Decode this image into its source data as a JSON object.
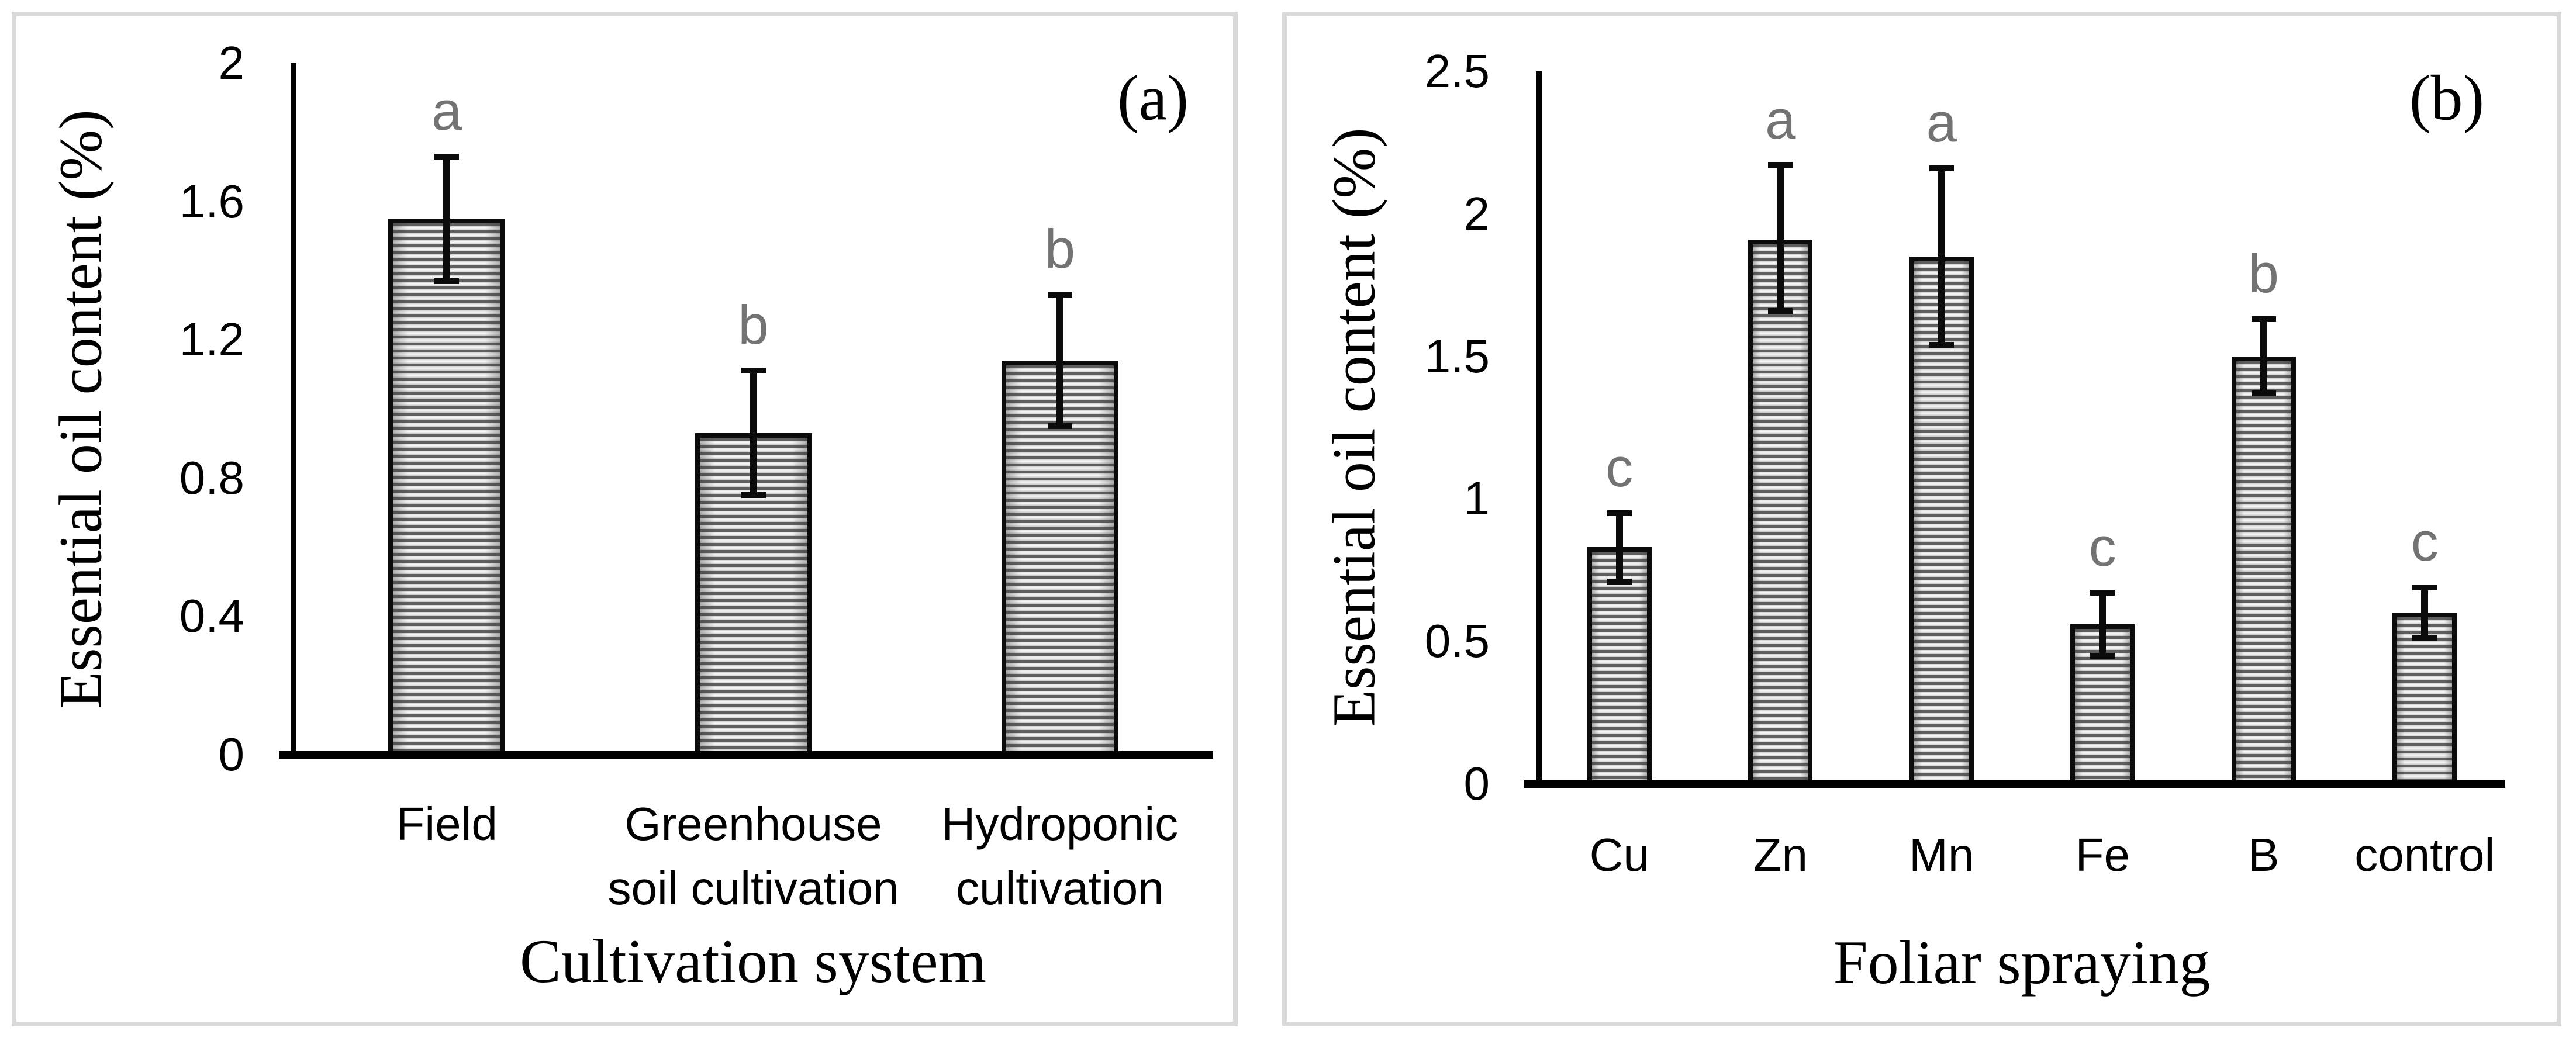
{
  "figure": {
    "background": "#ffffff",
    "frame_color": "#d9d9d9",
    "bar_stripe_dark": "#5f5f5f",
    "bar_stripe_light": "#f2f2f2",
    "bar_border_color": "#0b0b0b",
    "axis_color": "#000000",
    "significance_letter_color": "#737373"
  },
  "chart_data": [
    {
      "type": "bar",
      "panel_label": "(a)",
      "xlabel": "Cultivation system",
      "ylabel": "Essential oil content (%)",
      "ylim": [
        0,
        2
      ],
      "ytick_values": [
        0,
        0.4,
        0.8,
        1.2,
        1.6,
        2
      ],
      "ytick_labels": [
        "0",
        "0.4",
        "0.8",
        "1.2",
        "1.6",
        "2"
      ],
      "grid": false,
      "legend_position": "none",
      "categories": [
        [
          "Field"
        ],
        [
          "Greenhouse",
          "soil cultivation"
        ],
        [
          "Hydroponic",
          "cultivation"
        ]
      ],
      "series": [
        {
          "name": "Essential oil content",
          "values": [
            1.55,
            0.93,
            1.14
          ],
          "error_low": [
            1.37,
            0.75,
            0.95
          ],
          "error_high": [
            1.73,
            1.11,
            1.33
          ],
          "sig_letters": [
            "a",
            "b",
            "b"
          ]
        }
      ]
    },
    {
      "type": "bar",
      "panel_label": "(b)",
      "xlabel": "Foliar spraying",
      "ylabel": "Essential oil content (%)",
      "ylim": [
        0,
        2.5
      ],
      "ytick_values": [
        0,
        0.5,
        1,
        1.5,
        2,
        2.5
      ],
      "ytick_labels": [
        "0",
        "0.5",
        "1",
        "1.5",
        "2",
        "2.5"
      ],
      "grid": false,
      "legend_position": "none",
      "categories": [
        [
          "Cu"
        ],
        [
          "Zn"
        ],
        [
          "Mn"
        ],
        [
          "Fe"
        ],
        [
          "B"
        ],
        [
          "control"
        ]
      ],
      "series": [
        {
          "name": "Essential oil content",
          "values": [
            0.83,
            1.91,
            1.85,
            0.56,
            1.5,
            0.6
          ],
          "error_low": [
            0.71,
            1.66,
            1.54,
            0.45,
            1.37,
            0.51
          ],
          "error_high": [
            0.95,
            2.17,
            2.16,
            0.67,
            1.63,
            0.69
          ],
          "sig_letters": [
            "c",
            "a",
            "a",
            "c",
            "b",
            "c"
          ]
        }
      ]
    }
  ]
}
